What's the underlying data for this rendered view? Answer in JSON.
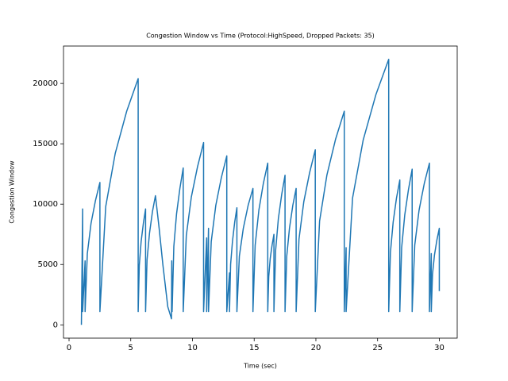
{
  "chart_data": {
    "type": "line",
    "title": "Congestion Window vs Time (Protocol:HighSpeed, Dropped Packets: 35)",
    "x_label": "Time (sec)",
    "y_label": "Congestion Window",
    "xlim": [
      -0.45,
      31.45
    ],
    "ylim": [
      -1100,
      23100
    ],
    "xticks": [
      0,
      5,
      10,
      15,
      20,
      25,
      30
    ],
    "yticks": [
      0,
      5000,
      10000,
      15000,
      20000
    ],
    "series": [
      {
        "color": "#1f77b4",
        "x": [
          1.0,
          1.1,
          1.1,
          1.3,
          1.3,
          1.48,
          1.78,
          2.14,
          2.5,
          2.5,
          2.97,
          3.74,
          4.67,
          5.6,
          5.6,
          5.69,
          5.84,
          6.02,
          6.2,
          6.2,
          6.32,
          6.52,
          6.76,
          7.0,
          7.3,
          7.6,
          8.0,
          8.3,
          8.32,
          8.35,
          8.49,
          8.71,
          8.98,
          9.25,
          9.25,
          9.5,
          9.91,
          10.41,
          10.9,
          10.9,
          11.15,
          11.15,
          11.3,
          11.3,
          11.52,
          11.89,
          12.34,
          12.78,
          12.78,
          13.0,
          13.0,
          13.09,
          13.24,
          13.42,
          13.6,
          13.6,
          13.8,
          14.12,
          14.51,
          14.9,
          14.9,
          15.08,
          15.38,
          15.74,
          16.1,
          16.1,
          16.18,
          16.3,
          16.45,
          16.6,
          16.6,
          16.74,
          16.96,
          17.23,
          17.5,
          17.5,
          17.64,
          17.86,
          18.13,
          18.4,
          18.4,
          18.63,
          19.02,
          19.49,
          19.95,
          19.95,
          20.3,
          20.89,
          21.6,
          22.3,
          22.3,
          22.45,
          22.45,
          22.97,
          23.83,
          24.87,
          25.9,
          25.9,
          26.04,
          26.26,
          26.53,
          26.8,
          26.8,
          26.95,
          27.2,
          27.5,
          27.8,
          27.8,
          28.01,
          28.36,
          28.78,
          29.2,
          29.2,
          29.35,
          29.35,
          29.45,
          29.61,
          29.8,
          30.0,
          30.0
        ],
        "values": [
          0,
          9600,
          1100,
          5300,
          1100,
          5900,
          8400,
          10300,
          11800,
          1100,
          9800,
          14200,
          17700,
          20400,
          1100,
          4900,
          6900,
          8400,
          9600,
          1100,
          5400,
          7600,
          9400,
          10700,
          8000,
          5000,
          1500,
          500,
          5300,
          1100,
          6500,
          9200,
          11300,
          13000,
          1100,
          7400,
          10600,
          13100,
          15100,
          1100,
          7200,
          1100,
          8000,
          1100,
          6900,
          9900,
          12200,
          14000,
          1100,
          4300,
          1100,
          5000,
          6900,
          8500,
          9700,
          1100,
          5700,
          8000,
          9900,
          11300,
          1100,
          6600,
          9500,
          11700,
          13400,
          1100,
          4000,
          5500,
          6600,
          7500,
          1100,
          6200,
          8800,
          10800,
          12400,
          1100,
          5700,
          8000,
          9900,
          11300,
          1100,
          7100,
          10200,
          12600,
          14500,
          1100,
          8600,
          12400,
          15400,
          17700,
          1100,
          6400,
          1100,
          10500,
          15300,
          19100,
          22000,
          1100,
          6000,
          8500,
          10500,
          12000,
          1100,
          6400,
          9100,
          11200,
          12900,
          1100,
          6600,
          9500,
          11700,
          13400,
          1100,
          5900,
          1100,
          4200,
          5800,
          7000,
          8000,
          2800
        ]
      }
    ]
  }
}
